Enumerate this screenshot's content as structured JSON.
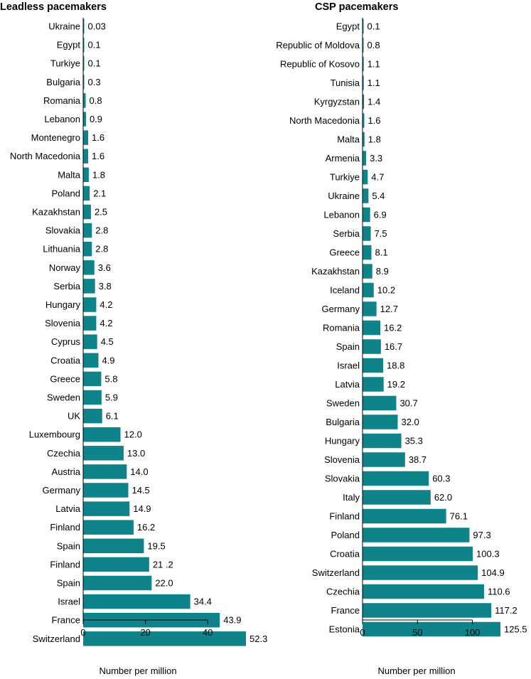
{
  "chart_data": [
    {
      "type": "bar",
      "orientation": "horizontal",
      "title": "Leadless pacemakers",
      "xlabel": "Number per million",
      "xlim": [
        0,
        52.3
      ],
      "xticks": [
        "0",
        "20",
        "40"
      ],
      "xtick_values": [
        0,
        20,
        40
      ],
      "color": "#0e8389",
      "categories": [
        "Ukraine",
        "Egypt",
        "Turkiye",
        "Bulgaria",
        "Romania",
        "Lebanon",
        "Montenegro",
        "North Macedonia",
        "Malta",
        "Poland",
        "Kazakhstan",
        "Slovakia",
        "Lithuania",
        "Norway",
        "Serbia",
        "Hungary",
        "Slovenia",
        "Cyprus",
        "Croatia",
        "Greece",
        "Sweden",
        "UK",
        "Luxembourg",
        "Czechia",
        "Austria",
        "Germany",
        "Latvia",
        "Finland",
        "Spain",
        "Finland",
        "Spain",
        "Israel",
        "France",
        "Switzerland"
      ],
      "values": [
        0.03,
        0.1,
        0.1,
        0.3,
        0.8,
        0.9,
        1.6,
        1.6,
        1.8,
        2.1,
        2.5,
        2.8,
        2.8,
        3.6,
        3.8,
        4.2,
        4.2,
        4.5,
        4.9,
        5.8,
        5.9,
        6.1,
        12.0,
        13.0,
        14.0,
        14.5,
        14.9,
        16.2,
        19.5,
        21.2,
        22.0,
        34.4,
        43.9,
        52.3
      ],
      "value_labels": [
        "0.03",
        "0.1",
        "0.1",
        "0.3",
        "0.8",
        "0.9",
        "1.6",
        "1.6",
        "1.8",
        "2.1",
        "2.5",
        "2.8",
        "2.8",
        "3.6",
        "3.8",
        "4.2",
        "4.2",
        "4.5",
        "4.9",
        "5.8",
        "5.9",
        "6.1",
        "12.0",
        "13.0",
        "14.0",
        "14.5",
        "14.9",
        "16.2",
        "19.5",
        "21 .2",
        "22.0",
        "34.4",
        "43.9",
        "52.3"
      ]
    },
    {
      "type": "bar",
      "orientation": "horizontal",
      "title": "CSP pacemakers",
      "xlabel": "Number per million",
      "xlim": [
        0,
        125.5
      ],
      "xticks": [
        "0",
        "50",
        "100"
      ],
      "xtick_values": [
        0,
        50,
        100
      ],
      "color": "#0e8389",
      "categories": [
        "Egypt",
        "Republic of Moldova",
        "Republic of Kosovo",
        "Tunisia",
        "Kyrgyzstan",
        "North Macedonia",
        "Malta",
        "Armenia",
        "Turkiye",
        "Ukraine",
        "Lebanon",
        "Serbia",
        "Greece",
        "Kazakhstan",
        "Iceland",
        "Germany",
        "Romania",
        "Spain",
        "Israel",
        "Latvia",
        "Sweden",
        "Bulgaria",
        "Hungary",
        "Slovenia",
        "Slovakia",
        "Italy",
        "Finland",
        "Poland",
        "Croatia",
        "Switzerland",
        "Czechia",
        "France",
        "Estonia"
      ],
      "values": [
        0.1,
        0.8,
        1.1,
        1.1,
        1.4,
        1.6,
        1.8,
        3.3,
        4.7,
        5.4,
        6.9,
        7.5,
        8.1,
        8.9,
        10.2,
        12.7,
        16.2,
        16.7,
        18.8,
        19.2,
        30.7,
        32.0,
        35.3,
        38.7,
        60.3,
        62.0,
        76.1,
        97.3,
        100.3,
        104.9,
        110.6,
        117.2,
        125.5
      ],
      "value_labels": [
        "0.1",
        "0.8",
        "1.1",
        "1.1",
        "1.4",
        "1.6",
        "1.8",
        "3.3",
        "4.7",
        "5.4",
        "6.9",
        "7.5",
        "8.1",
        "8.9",
        "10.2",
        "12.7",
        "16.2",
        "16.7",
        "18.8",
        "19.2",
        "30.7",
        "32.0",
        "35.3",
        "38.7",
        "60.3",
        "62.0",
        "76.1",
        "97.3",
        "100.3",
        "104.9",
        "110.6",
        "117.2",
        "125.5"
      ]
    }
  ]
}
